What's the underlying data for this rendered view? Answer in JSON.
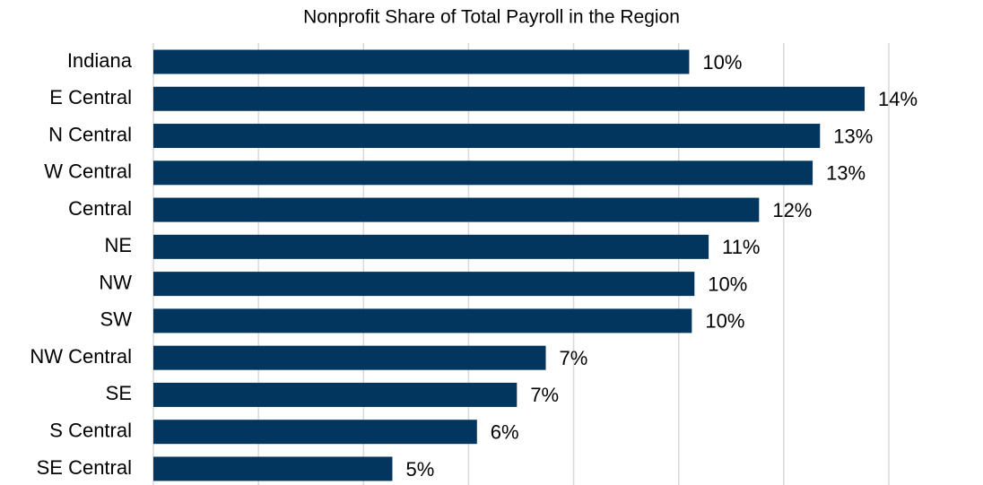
{
  "chart_data": {
    "type": "bar",
    "orientation": "horizontal",
    "title": "Nonprofit Share of Total Payroll in the Region",
    "categories": [
      "Indiana",
      "E Central",
      "N Central",
      "W Central",
      "Central",
      "NE",
      "NW",
      "SW",
      "NW Central",
      "SE",
      "S Central",
      "SE Central"
    ],
    "values": [
      10.2,
      13.54,
      12.69,
      12.55,
      11.53,
      10.57,
      10.3,
      10.25,
      7.47,
      6.92,
      6.16,
      4.55
    ],
    "value_labels": [
      "10%",
      "14%",
      "13%",
      "13%",
      "12%",
      "11%",
      "10%",
      "10%",
      "7%",
      "7%",
      "6%",
      "5%"
    ],
    "color": "#02365e",
    "xlim": [
      0,
      14
    ],
    "xticks": [
      0,
      2,
      4,
      6,
      8,
      10,
      12,
      14
    ],
    "grid": true
  }
}
